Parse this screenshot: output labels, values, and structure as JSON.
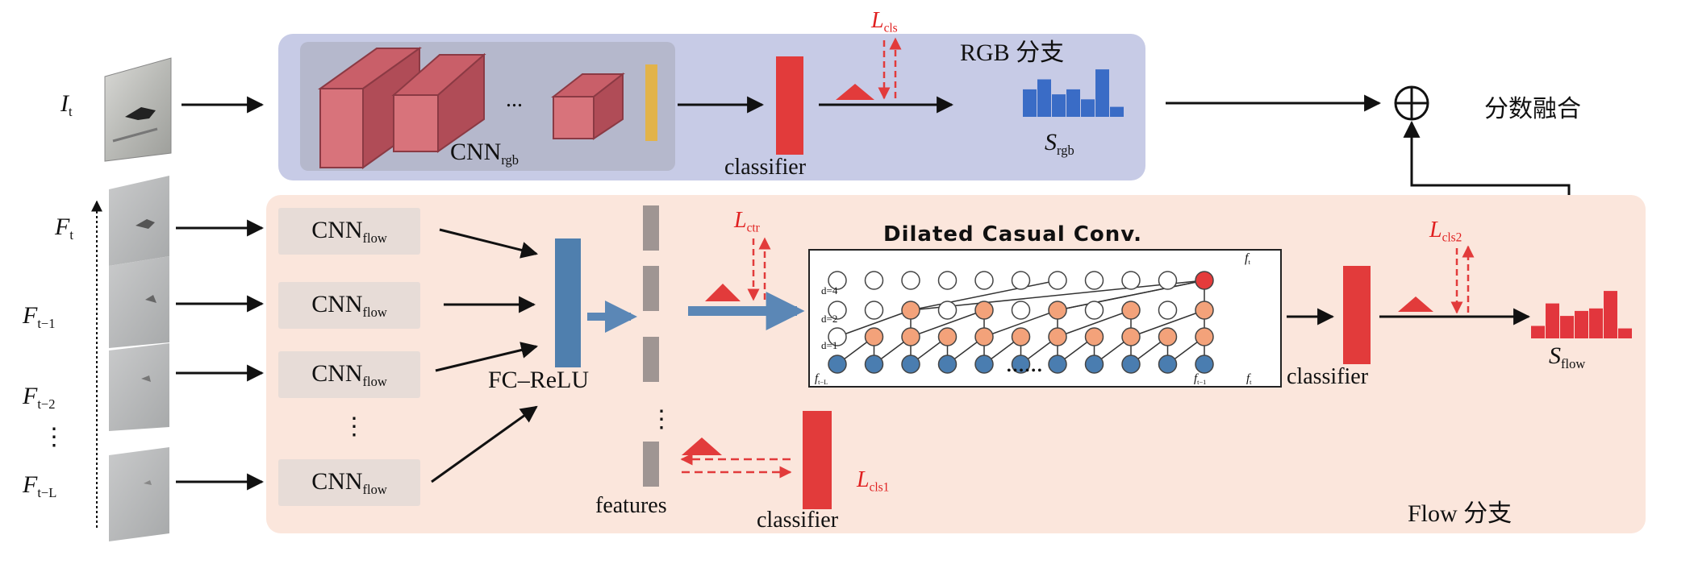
{
  "rgb_branch": {
    "input_label": "I",
    "input_sub": "t",
    "cnn_label": "CNN",
    "cnn_sub": "rgb",
    "dots": "...",
    "classifier_label": "classifier",
    "loss_label": "L",
    "loss_sub": "cls",
    "branch_label": "RGB 分支",
    "score_label": "S",
    "score_sub": "rgb",
    "score_hist": [
      0.55,
      0.75,
      0.45,
      0.55,
      0.35,
      0.95,
      0.2
    ]
  },
  "fusion": {
    "label": "分数融合"
  },
  "flow_branch": {
    "frames": [
      {
        "label": "F",
        "sub": "t"
      },
      {
        "label": "F",
        "sub": "t−1"
      },
      {
        "label": "F",
        "sub": "t−2"
      },
      {
        "label": "F",
        "sub": "t−L"
      }
    ],
    "frame_vdots": "⋮",
    "cnn_label": "CNN",
    "cnn_sub": "flow",
    "cnn_vdots": "⋮",
    "fc_label": "FC–ReLU",
    "features_label": "features",
    "features_vdots": "⋮",
    "loss_ctr_label": "L",
    "loss_ctr_sub": "ctr",
    "conv_title": "Dilated Casual Conv.",
    "conv_dots": "••••••",
    "conv_output_label": "f",
    "conv_output_sub": "t",
    "conv_input_first": "f",
    "conv_input_first_sub": "t−L",
    "conv_input_prev": "f",
    "conv_input_prev_sub": "t−1",
    "conv_input_last": "f",
    "conv_input_last_sub": "t",
    "dilation_labels": [
      "d=4",
      "d=2",
      "d=1"
    ],
    "classifier_label": "classifier",
    "loss_cls2_label": "L",
    "loss_cls2_sub": "cls2",
    "score_label": "S",
    "score_sub": "flow",
    "score_hist": [
      0.25,
      0.7,
      0.45,
      0.55,
      0.6,
      0.95,
      0.2
    ],
    "bottom_classifier_label": "classifier",
    "loss_cls1_label": "L",
    "loss_cls1_sub": "cls1",
    "branch_label": "Flow 分支"
  },
  "colors": {
    "rgb_panel": "#c7cbe6",
    "flow_panel": "#fbe6dc",
    "cnn_block": "#d8737b",
    "classifier_red": "#e23b3b",
    "feature_bar": "#5b87b6",
    "score_rgb": "#3a6cc6",
    "score_flow": "#e2363d",
    "node_blue": "#4a7db0",
    "node_orange": "#f3a27a",
    "node_red": "#e53b3b",
    "yellow_bar": "#e2b34a"
  }
}
